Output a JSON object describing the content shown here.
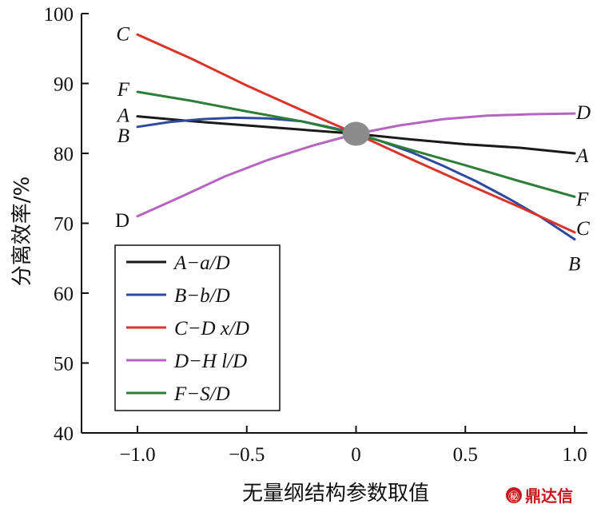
{
  "chart_data": {
    "type": "line",
    "xlabel": "无量纲结构参数取值",
    "ylabel": "分离效率/%",
    "xlim": [
      -1.0,
      1.0
    ],
    "ylim": [
      40,
      100
    ],
    "x_ticks": [
      {
        "value": -1.0,
        "label": "−1.0"
      },
      {
        "value": -0.5,
        "label": "−0.5"
      },
      {
        "value": 0,
        "label": "0"
      },
      {
        "value": 0.5,
        "label": "0.5"
      },
      {
        "value": 1.0,
        "label": "1.0"
      }
    ],
    "y_ticks": [
      {
        "value": 40,
        "label": "40"
      },
      {
        "value": 50,
        "label": "50"
      },
      {
        "value": 60,
        "label": "60"
      },
      {
        "value": 70,
        "label": "70"
      },
      {
        "value": 80,
        "label": "80"
      },
      {
        "value": 90,
        "label": "90"
      },
      {
        "value": 100,
        "label": "100"
      }
    ],
    "center_point": {
      "x": 0,
      "y": 82.8
    },
    "legend_position": "bottom-left",
    "series": [
      {
        "name": "A−a/D",
        "color": "#1a1a1a",
        "left_label": "A",
        "right_label": "A",
        "left_italic": true,
        "right_italic": true,
        "points": [
          [
            -1.0,
            85.3
          ],
          [
            -0.75,
            84.6
          ],
          [
            -0.5,
            84.0
          ],
          [
            -0.25,
            83.4
          ],
          [
            0,
            82.8
          ],
          [
            0.25,
            82.0
          ],
          [
            0.5,
            81.3
          ],
          [
            0.75,
            80.8
          ],
          [
            1.0,
            80.0
          ]
        ]
      },
      {
        "name": "B−b/D",
        "color": "#2e4a9c",
        "left_label": "B",
        "right_label": "B",
        "left_italic": true,
        "right_italic": true,
        "points": [
          [
            -1.0,
            83.8
          ],
          [
            -0.85,
            84.5
          ],
          [
            -0.7,
            84.9
          ],
          [
            -0.55,
            85.1
          ],
          [
            -0.4,
            85.0
          ],
          [
            -0.25,
            84.6
          ],
          [
            -0.1,
            83.6
          ],
          [
            0,
            82.8
          ],
          [
            0.1,
            81.9
          ],
          [
            0.25,
            80.2
          ],
          [
            0.4,
            78.2
          ],
          [
            0.55,
            76.0
          ],
          [
            0.7,
            73.5
          ],
          [
            0.85,
            70.8
          ],
          [
            1.0,
            67.7
          ]
        ]
      },
      {
        "name": "C−D x/D",
        "color": "#d9342b",
        "left_label": "C",
        "right_label": "C",
        "left_italic": true,
        "right_italic": true,
        "points": [
          [
            -1.0,
            97.0
          ],
          [
            -0.75,
            93.5
          ],
          [
            -0.5,
            89.7
          ],
          [
            -0.25,
            86.2
          ],
          [
            0,
            82.8
          ],
          [
            0.25,
            79.2
          ],
          [
            0.5,
            75.7
          ],
          [
            0.75,
            72.3
          ],
          [
            1.0,
            68.7
          ]
        ]
      },
      {
        "name": "D−H l/D",
        "color": "#b565c0",
        "left_label": "D",
        "right_label": "D",
        "left_italic": false,
        "right_italic": true,
        "points": [
          [
            -1.0,
            71.0
          ],
          [
            -0.8,
            73.8
          ],
          [
            -0.6,
            76.7
          ],
          [
            -0.4,
            79.1
          ],
          [
            -0.2,
            81.1
          ],
          [
            0,
            82.8
          ],
          [
            0.2,
            84.0
          ],
          [
            0.4,
            84.9
          ],
          [
            0.6,
            85.4
          ],
          [
            0.8,
            85.6
          ],
          [
            1.0,
            85.7
          ]
        ]
      },
      {
        "name": "F−S/D",
        "color": "#2f7d3a",
        "left_label": "F",
        "right_label": "F",
        "left_italic": true,
        "right_italic": true,
        "points": [
          [
            -1.0,
            88.8
          ],
          [
            -0.75,
            87.5
          ],
          [
            -0.5,
            86.0
          ],
          [
            -0.25,
            84.6
          ],
          [
            0,
            82.8
          ],
          [
            0.25,
            80.5
          ],
          [
            0.5,
            78.3
          ],
          [
            0.75,
            76.0
          ],
          [
            1.0,
            73.8
          ]
        ]
      }
    ]
  },
  "watermark": {
    "text": "鼎达信",
    "logo_glyph": "㊙"
  }
}
